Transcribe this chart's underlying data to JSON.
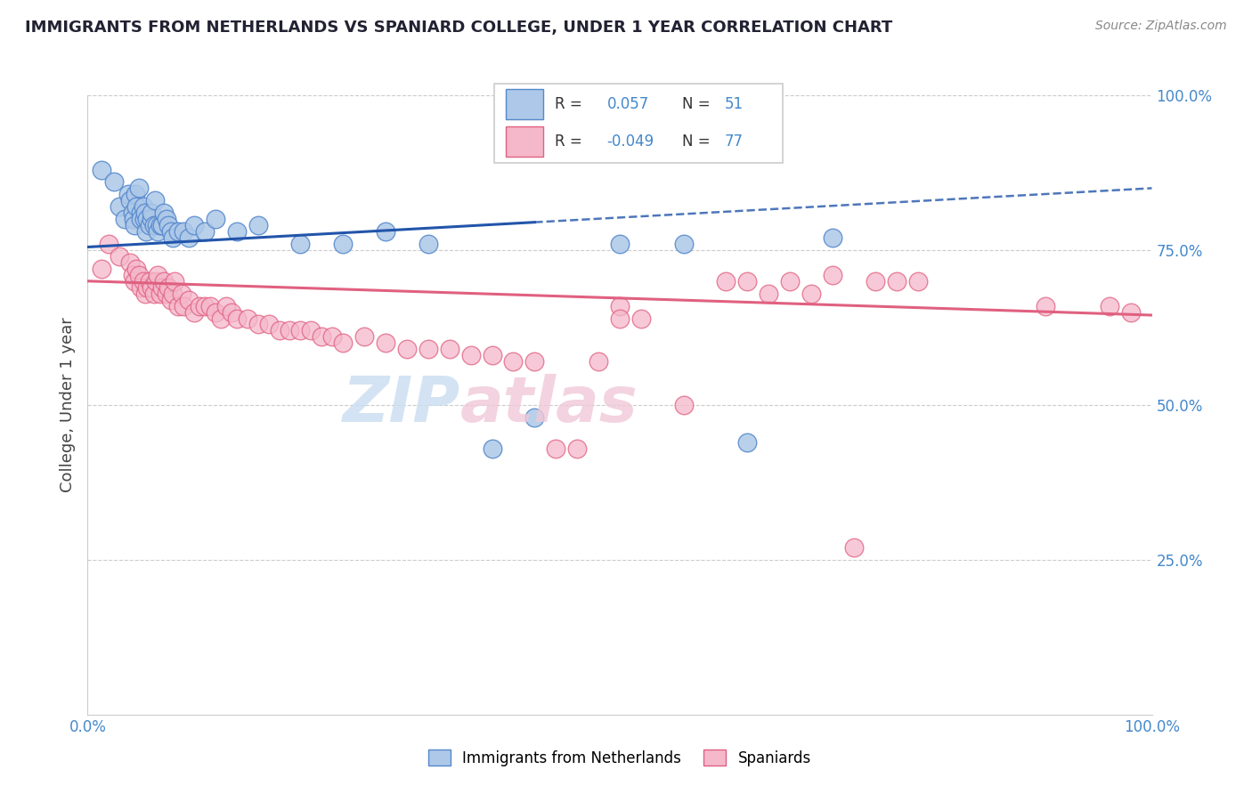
{
  "title": "IMMIGRANTS FROM NETHERLANDS VS SPANIARD COLLEGE, UNDER 1 YEAR CORRELATION CHART",
  "source_text": "Source: ZipAtlas.com",
  "ylabel": "College, Under 1 year",
  "legend_label1": "Immigrants from Netherlands",
  "legend_label2": "Spaniards",
  "R1": 0.057,
  "N1": 51,
  "R2": -0.049,
  "N2": 77,
  "xlim": [
    0.0,
    1.0
  ],
  "ylim": [
    0.0,
    1.0
  ],
  "color1_face": "#adc8e8",
  "color1_edge": "#5588cc",
  "color2_face": "#f5b8cb",
  "color2_edge": "#e06080",
  "line_color1": "#2255aa",
  "line_color2": "#e06080",
  "title_color": "#222233",
  "tick_color": "#4488cc",
  "source_color": "#888888",
  "background_color": "#ffffff",
  "grid_color": "#cccccc",
  "legend_box_color": "#dddddd",
  "watermark_color": "#c8ddf0",
  "watermark_color2": "#f0c8d8",
  "scatter1_x": [
    0.013,
    0.025,
    0.03,
    0.035,
    0.038,
    0.04,
    0.042,
    0.043,
    0.044,
    0.045,
    0.046,
    0.048,
    0.05,
    0.05,
    0.052,
    0.053,
    0.054,
    0.055,
    0.056,
    0.058,
    0.06,
    0.06,
    0.062,
    0.063,
    0.065,
    0.066,
    0.068,
    0.07,
    0.072,
    0.074,
    0.076,
    0.078,
    0.08,
    0.085,
    0.09,
    0.095,
    0.1,
    0.11,
    0.12,
    0.14,
    0.16,
    0.2,
    0.24,
    0.28,
    0.32,
    0.38,
    0.42,
    0.5,
    0.56,
    0.62,
    0.7
  ],
  "scatter1_y": [
    0.88,
    0.86,
    0.82,
    0.8,
    0.84,
    0.83,
    0.81,
    0.8,
    0.79,
    0.84,
    0.82,
    0.85,
    0.81,
    0.8,
    0.82,
    0.8,
    0.81,
    0.78,
    0.8,
    0.79,
    0.8,
    0.81,
    0.79,
    0.83,
    0.79,
    0.78,
    0.79,
    0.79,
    0.81,
    0.8,
    0.79,
    0.78,
    0.77,
    0.78,
    0.78,
    0.77,
    0.79,
    0.78,
    0.8,
    0.78,
    0.79,
    0.76,
    0.76,
    0.78,
    0.76,
    0.43,
    0.48,
    0.76,
    0.76,
    0.44,
    0.77
  ],
  "scatter2_x": [
    0.013,
    0.02,
    0.03,
    0.04,
    0.042,
    0.044,
    0.046,
    0.048,
    0.05,
    0.052,
    0.054,
    0.056,
    0.058,
    0.06,
    0.062,
    0.064,
    0.066,
    0.068,
    0.07,
    0.072,
    0.074,
    0.076,
    0.078,
    0.08,
    0.082,
    0.085,
    0.088,
    0.09,
    0.095,
    0.1,
    0.105,
    0.11,
    0.115,
    0.12,
    0.125,
    0.13,
    0.135,
    0.14,
    0.15,
    0.16,
    0.17,
    0.18,
    0.19,
    0.2,
    0.21,
    0.22,
    0.23,
    0.24,
    0.26,
    0.28,
    0.3,
    0.32,
    0.34,
    0.36,
    0.38,
    0.4,
    0.42,
    0.44,
    0.46,
    0.48,
    0.5,
    0.5,
    0.52,
    0.56,
    0.6,
    0.62,
    0.64,
    0.66,
    0.68,
    0.7,
    0.72,
    0.74,
    0.76,
    0.78,
    0.9,
    0.96,
    0.98
  ],
  "scatter2_y": [
    0.72,
    0.76,
    0.74,
    0.73,
    0.71,
    0.7,
    0.72,
    0.71,
    0.69,
    0.7,
    0.68,
    0.69,
    0.7,
    0.69,
    0.68,
    0.7,
    0.71,
    0.68,
    0.69,
    0.7,
    0.68,
    0.69,
    0.67,
    0.68,
    0.7,
    0.66,
    0.68,
    0.66,
    0.67,
    0.65,
    0.66,
    0.66,
    0.66,
    0.65,
    0.64,
    0.66,
    0.65,
    0.64,
    0.64,
    0.63,
    0.63,
    0.62,
    0.62,
    0.62,
    0.62,
    0.61,
    0.61,
    0.6,
    0.61,
    0.6,
    0.59,
    0.59,
    0.59,
    0.58,
    0.58,
    0.57,
    0.57,
    0.43,
    0.43,
    0.57,
    0.66,
    0.64,
    0.64,
    0.5,
    0.7,
    0.7,
    0.68,
    0.7,
    0.68,
    0.71,
    0.27,
    0.7,
    0.7,
    0.7,
    0.66,
    0.66,
    0.65
  ],
  "trend1_x0": 0.0,
  "trend1_x_solid_end": 0.42,
  "trend1_x1": 1.0,
  "trend1_y0": 0.755,
  "trend1_y_solid_end": 0.795,
  "trend1_y1": 0.85,
  "trend2_x0": 0.0,
  "trend2_x1": 1.0,
  "trend2_y0": 0.7,
  "trend2_y1": 0.645
}
